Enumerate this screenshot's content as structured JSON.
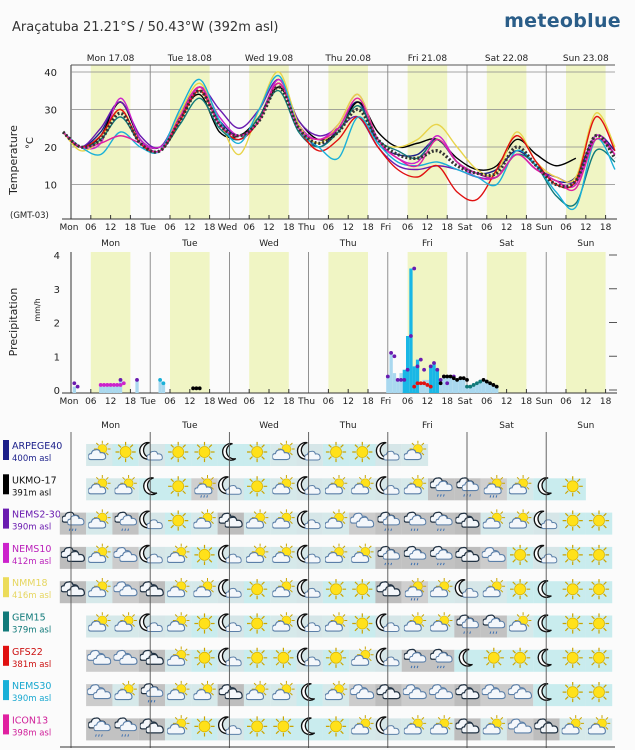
{
  "header": {
    "title": "Araçatuba  21.21°S / 50.43°W (392m asl)",
    "logo": "meteoblue"
  },
  "day_labels_full": [
    "Mon 17.08",
    "Tue 18.08",
    "Wed 19.08",
    "Thu 20.08",
    "Fri 21.08",
    "Sat 22.08",
    "Sun 23.08"
  ],
  "day_labels_short": [
    "Mon",
    "Tue",
    "Wed",
    "Thu",
    "Fri",
    "Sat",
    "Sun"
  ],
  "hour_ticks": [
    "06",
    "12",
    "18"
  ],
  "timezone": "(GMT-03)",
  "colors": {
    "daylight": "#f0f5c4",
    "mean_dotted": "#444444",
    "grid": "#888888"
  },
  "chart_data": [
    {
      "type": "line",
      "title": "Temperature",
      "ylabel": "Temperature",
      "yunit": "°C",
      "yticks": [
        10,
        20,
        30,
        40
      ],
      "ylim": [
        2,
        42
      ],
      "x_hours": [
        3,
        9,
        15,
        21,
        27,
        33,
        39,
        45,
        51,
        57,
        63,
        69,
        75,
        81,
        87,
        93,
        99,
        105,
        111,
        117,
        123,
        129,
        135,
        141,
        147,
        153,
        159,
        165
      ],
      "series": [
        {
          "name": "Mean",
          "color": "#333333",
          "dotted": true,
          "values": [
            20,
            22,
            29,
            21,
            19,
            27,
            35,
            26,
            23,
            27,
            36,
            25,
            21,
            24,
            30,
            22,
            18,
            17,
            19,
            15,
            13,
            13,
            20,
            15,
            10,
            11,
            23,
            17
          ]
        },
        {
          "name": "ARPEGE40",
          "color": "#1b1f8a",
          "values": [
            20,
            24,
            32,
            22,
            19,
            28,
            35,
            27,
            23,
            28,
            37,
            26,
            20,
            25,
            32,
            21,
            18,
            18,
            22,
            16,
            13,
            14,
            19,
            15,
            11,
            12,
            23,
            19
          ]
        },
        {
          "name": "UKMO-17",
          "color": "#000000",
          "values": [
            20,
            23,
            32,
            22,
            20,
            28,
            34,
            24,
            23,
            28,
            36,
            27,
            22,
            24,
            32,
            24,
            20,
            21,
            22,
            17,
            14,
            15,
            22,
            18,
            15,
            17,
            null,
            null
          ]
        },
        {
          "name": "NEMS2-30",
          "color": "#6a1bb0",
          "values": [
            20,
            25,
            32,
            23,
            20,
            29,
            36,
            30,
            25,
            30,
            38,
            27,
            23,
            25,
            28,
            20,
            15,
            14,
            15,
            14,
            12,
            12,
            18,
            14,
            12,
            11,
            22,
            18
          ]
        },
        {
          "name": "NEMS10",
          "color": "#cc22cc",
          "values": [
            20,
            21,
            33,
            22,
            20,
            27,
            36,
            28,
            23,
            27,
            38,
            26,
            22,
            26,
            34,
            22,
            17,
            16,
            23,
            16,
            12,
            12,
            18,
            14,
            11,
            10,
            23,
            18
          ]
        },
        {
          "name": "NMM18",
          "color": "#e8d44a",
          "values": [
            19,
            22,
            30,
            21,
            19,
            29,
            37,
            27,
            18,
            30,
            40,
            26,
            21,
            26,
            34,
            22,
            20,
            22,
            26,
            20,
            14,
            13,
            24,
            16,
            12,
            12,
            29,
            20
          ]
        },
        {
          "name": "GEM15",
          "color": "#117a7a",
          "values": [
            20,
            22,
            28,
            21,
            19,
            26,
            33,
            25,
            22,
            28,
            35,
            24,
            20,
            24,
            31,
            22,
            19,
            17,
            22,
            16,
            13,
            12,
            18,
            15,
            7,
            5,
            19,
            16
          ]
        },
        {
          "name": "GFS22",
          "color": "#e01010",
          "values": [
            20,
            23,
            30,
            21,
            19,
            27,
            35,
            26,
            22,
            27,
            37,
            25,
            19,
            22,
            28,
            20,
            14,
            12,
            15,
            8,
            6,
            14,
            23,
            16,
            10,
            11,
            28,
            19
          ]
        },
        {
          "name": "NEMS30",
          "color": "#19b0d8",
          "values": [
            20,
            18,
            24,
            20,
            19,
            30,
            38,
            27,
            21,
            30,
            39,
            25,
            20,
            17,
            28,
            21,
            16,
            15,
            16,
            14,
            12,
            10,
            19,
            15,
            8,
            4,
            22,
            14
          ]
        },
        {
          "name": "ICON13",
          "color": "#e020a0",
          "values": [
            20,
            21,
            23,
            21,
            19,
            28,
            36,
            26,
            23,
            27,
            37,
            25,
            22,
            25,
            33,
            22,
            17,
            15,
            22,
            16,
            13,
            12,
            18,
            14,
            11,
            9,
            22,
            18
          ]
        }
      ]
    },
    {
      "type": "bar",
      "title": "Precipitation",
      "ylabel": "Precipitation",
      "yunit": "mm/h",
      "yticks": [
        0,
        1,
        2,
        3,
        4
      ],
      "ylim": [
        0,
        4
      ],
      "bar_color": "#a9d8ef",
      "bar_color_dark": "#19b7e6",
      "bars": [
        [
          1,
          0.1
        ],
        [
          9,
          0.1
        ],
        [
          10,
          0.1
        ],
        [
          11,
          0.1
        ],
        [
          12,
          0.1
        ],
        [
          13,
          0.1
        ],
        [
          14,
          0.15
        ],
        [
          15,
          0.3
        ],
        [
          20,
          0.3
        ],
        [
          27,
          0.3
        ],
        [
          28,
          0.2
        ],
        [
          96,
          0.4
        ],
        [
          97,
          1.1
        ],
        [
          98,
          0.5
        ],
        [
          99,
          0.3
        ],
        [
          100,
          0.5
        ],
        [
          101,
          0.6
        ],
        [
          102,
          1.6
        ],
        [
          103,
          3.6
        ],
        [
          104,
          0.7
        ],
        [
          105,
          0.9
        ],
        [
          106,
          0.2
        ],
        [
          107,
          0.3
        ],
        [
          108,
          0.3
        ],
        [
          109,
          0.7
        ],
        [
          110,
          0.8
        ],
        [
          111,
          0.6
        ],
        [
          112,
          0.3
        ],
        [
          113,
          0.4
        ],
        [
          114,
          0.4
        ],
        [
          115,
          0.35
        ],
        [
          116,
          0.3
        ],
        [
          117,
          0.3
        ],
        [
          118,
          0.35
        ],
        [
          119,
          0.3
        ],
        [
          120,
          0.1
        ],
        [
          121,
          0.1
        ],
        [
          122,
          0.15
        ],
        [
          123,
          0.2
        ],
        [
          124,
          0.25
        ],
        [
          125,
          0.3
        ],
        [
          126,
          0.25
        ],
        [
          127,
          0.2
        ],
        [
          128,
          0.15
        ],
        [
          129,
          0.1
        ]
      ],
      "dots": [
        {
          "name": "NEMS2-30",
          "color": "#6a1bb0",
          "points": [
            [
              1,
              0.2
            ],
            [
              2,
              0.1
            ],
            [
              15,
              0.3
            ],
            [
              20,
              0.3
            ],
            [
              96,
              0.4
            ],
            [
              97,
              1.1
            ],
            [
              98,
              1.0
            ],
            [
              99,
              0.3
            ],
            [
              100,
              0.3
            ],
            [
              101,
              0.3
            ],
            [
              102,
              0.6
            ],
            [
              103,
              1.6
            ],
            [
              104,
              3.6
            ],
            [
              105,
              0.7
            ],
            [
              106,
              0.9
            ],
            [
              107,
              0.6
            ],
            [
              109,
              0.7
            ],
            [
              110,
              0.8
            ],
            [
              111,
              0.6
            ],
            [
              112,
              0.3
            ],
            [
              113,
              0.4
            ],
            [
              114,
              0.2
            ],
            [
              116,
              0.4
            ]
          ]
        },
        {
          "name": "NEMS10",
          "color": "#cc22cc",
          "points": [
            [
              9,
              0.15
            ],
            [
              10,
              0.15
            ],
            [
              11,
              0.15
            ],
            [
              12,
              0.15
            ],
            [
              13,
              0.15
            ],
            [
              14,
              0.15
            ],
            [
              15,
              0.15
            ],
            [
              16,
              0.2
            ]
          ]
        },
        {
          "name": "UKMO-17",
          "color": "#000000",
          "points": [
            [
              37,
              0.05
            ],
            [
              38,
              0.05
            ],
            [
              39,
              0.05
            ],
            [
              112,
              0.2
            ],
            [
              113,
              0.4
            ],
            [
              114,
              0.4
            ],
            [
              115,
              0.4
            ],
            [
              116,
              0.35
            ],
            [
              117,
              0.3
            ],
            [
              118,
              0.35
            ],
            [
              119,
              0.35
            ],
            [
              120,
              0.3
            ],
            [
              125,
              0.3
            ],
            [
              126,
              0.25
            ],
            [
              127,
              0.2
            ],
            [
              128,
              0.15
            ],
            [
              129,
              0.1
            ]
          ]
        },
        {
          "name": "GFS22",
          "color": "#e01010",
          "points": [
            [
              104,
              0.1
            ],
            [
              105,
              0.2
            ],
            [
              106,
              0.2
            ],
            [
              107,
              0.2
            ],
            [
              108,
              0.15
            ],
            [
              109,
              0.1
            ]
          ]
        },
        {
          "name": "NEMS30",
          "color": "#19b0d8",
          "points": [
            [
              27,
              0.3
            ],
            [
              28,
              0.2
            ]
          ]
        },
        {
          "name": "GEM15",
          "color": "#117a7a",
          "points": [
            [
              120,
              0.1
            ],
            [
              121,
              0.1
            ],
            [
              122,
              0.15
            ],
            [
              123,
              0.2
            ],
            [
              124,
              0.25
            ]
          ]
        }
      ]
    }
  ],
  "models": [
    {
      "name": "ARPEGE40",
      "asl": "400m asl",
      "color": "#1b1f8a",
      "text_color": "#1b1f8a",
      "icons": [
        null,
        "ps",
        "s",
        "mc",
        "s",
        "s",
        "m",
        "s",
        "ps",
        "mc",
        "s",
        "s",
        "mc",
        "ps",
        null,
        null,
        null,
        null,
        null,
        null,
        null
      ]
    },
    {
      "name": "UKMO-17",
      "asl": "391m asl",
      "color": "#000000",
      "text_color": "#111111",
      "icons": [
        null,
        "ps",
        "ps",
        "m",
        "s",
        "psr",
        "mc",
        "s",
        "ps",
        "mc",
        "ps",
        "ps",
        "mc",
        "ps",
        "cr",
        "cr",
        "psr",
        "ps",
        "m",
        "s",
        null
      ]
    },
    {
      "name": "NEMS2-30",
      "asl": "390m asl",
      "color": "#6a1bb0",
      "text_color": "#6a1bb0",
      "icons": [
        "cr",
        "ps",
        "cr",
        "mc",
        "s",
        "ps",
        "cd",
        "ps",
        "ps",
        "mc",
        "ps",
        "c",
        "cr",
        "cr",
        "cr",
        "cd",
        "ps",
        "ps",
        "mc",
        "s",
        "s"
      ]
    },
    {
      "name": "NEMS10",
      "asl": "412m asl",
      "color": "#cc22cc",
      "text_color": "#bb22bb",
      "icons": [
        "cd",
        "ps",
        "c",
        "mc",
        "ps",
        "s",
        "mc",
        "ps",
        "ps",
        "mc",
        "ps",
        "ps",
        "cr",
        "cr",
        "cr",
        "cd",
        "c",
        "s",
        "mc",
        "s",
        "s"
      ]
    },
    {
      "name": "NMM18",
      "asl": "416m asl",
      "color": "#ecdc5a",
      "text_color": "#e6d660",
      "icons": [
        "cd",
        "ps",
        "c",
        "cd",
        "ps",
        "ps",
        "mc",
        "s",
        "ps",
        "mc",
        "s",
        "s",
        "cd",
        "psr",
        "ps",
        "mc",
        "ps",
        "s",
        "m",
        "s",
        "s"
      ]
    },
    {
      "name": "GEM15",
      "asl": "379m asl",
      "color": "#117a7a",
      "text_color": "#117a7a",
      "icons": [
        null,
        "ps",
        "ps",
        "mc",
        "ps",
        "s",
        "mc",
        "s",
        "ps",
        "mc",
        "ps",
        "s",
        "mc",
        "ps",
        "ps",
        "cr",
        "cr",
        "ps",
        "m",
        "s",
        "s"
      ]
    },
    {
      "name": "GFS22",
      "asl": "381m asl",
      "color": "#e01010",
      "text_color": "#cc1111",
      "icons": [
        null,
        "c",
        "c",
        "cd",
        "ps",
        "s",
        "mc",
        "s",
        "s",
        "mc",
        "s",
        "ps",
        "mc",
        "cr",
        "cr",
        "m",
        "s",
        "s",
        "m",
        "s",
        "s"
      ]
    },
    {
      "name": "NEMS30",
      "asl": "390m asl",
      "color": "#19b0d8",
      "text_color": "#19a8d0",
      "icons": [
        null,
        "c",
        "ps",
        "cr",
        "ps",
        "ps",
        "cd",
        "ps",
        "ps",
        "m",
        "ps",
        "c",
        "cd",
        "c",
        "c",
        "cd",
        "c",
        "c",
        "m",
        "s",
        "s"
      ]
    },
    {
      "name": "ICON13",
      "asl": "398m asl",
      "color": "#e020a0",
      "text_color": "#d0209a",
      "icons": [
        null,
        "cr",
        "cr",
        "cd",
        "ps",
        "s",
        "mc",
        "s",
        "s",
        "m",
        "s",
        "ps",
        "mc",
        "ps",
        "ps",
        "cd",
        "ps",
        "c",
        "cd",
        "ps",
        "ps"
      ]
    }
  ]
}
